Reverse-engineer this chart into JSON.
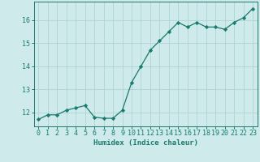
{
  "x": [
    0,
    1,
    2,
    3,
    4,
    5,
    6,
    7,
    8,
    9,
    10,
    11,
    12,
    13,
    14,
    15,
    16,
    17,
    18,
    19,
    20,
    21,
    22,
    23
  ],
  "y": [
    11.7,
    11.9,
    11.9,
    12.1,
    12.2,
    12.3,
    11.8,
    11.75,
    11.75,
    12.1,
    13.3,
    14.0,
    14.7,
    15.1,
    15.5,
    15.9,
    15.7,
    15.9,
    15.7,
    15.7,
    15.6,
    15.9,
    16.1,
    16.5
  ],
  "line_color": "#1a7a6e",
  "marker": "D",
  "marker_size": 2.2,
  "bg_color": "#ceeaea",
  "grid_color": "#aed4d4",
  "xlabel": "Humidex (Indice chaleur)",
  "xlim": [
    -0.5,
    23.5
  ],
  "ylim": [
    11.4,
    16.8
  ],
  "yticks": [
    12,
    13,
    14,
    15,
    16
  ],
  "xticks": [
    0,
    1,
    2,
    3,
    4,
    5,
    6,
    7,
    8,
    9,
    10,
    11,
    12,
    13,
    14,
    15,
    16,
    17,
    18,
    19,
    20,
    21,
    22,
    23
  ],
  "xlabel_fontsize": 6.5,
  "tick_fontsize": 6.0
}
